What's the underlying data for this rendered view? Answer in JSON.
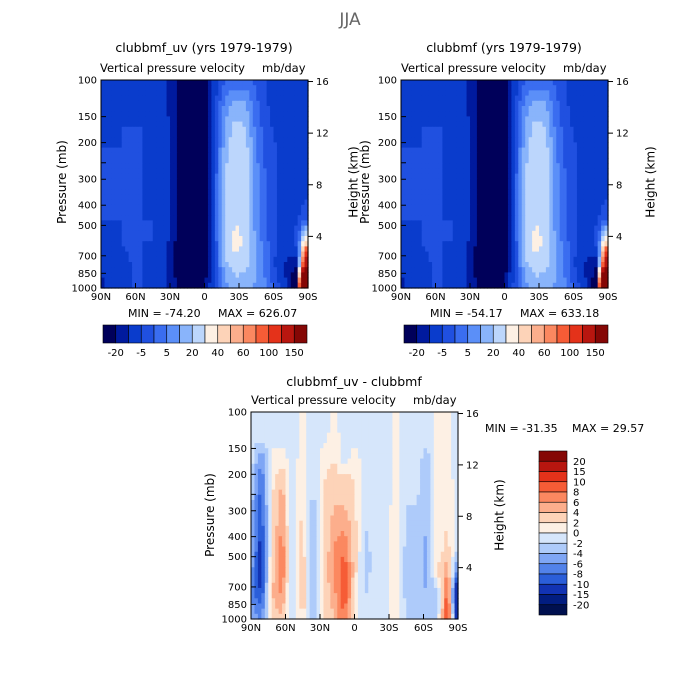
{
  "page": {
    "suptitle": "JJA"
  },
  "chart_data": [
    {
      "type": "heatmap",
      "title": "clubbmf_uv (yrs 1979-1979)",
      "subtitle_left": "Vertical pressure velocity",
      "subtitle_right": "mb/day",
      "xlabel": "",
      "ylabel": "Pressure (mb)",
      "ylabel_right": "Height (km)",
      "x_ticks": [
        "90N",
        "60N",
        "30N",
        "0",
        "30S",
        "60S",
        "90S"
      ],
      "y_ticks": [
        100,
        150,
        200,
        250,
        300,
        400,
        500,
        700,
        850,
        1000
      ],
      "y_tick_labels": [
        "100",
        "150",
        "200",
        "250",
        "300",
        "400",
        "500",
        "700",
        "850",
        "1000"
      ],
      "y_scale": "log",
      "ylim": [
        1000,
        100
      ],
      "height_ticks": [
        "16",
        "12",
        "8",
        "4"
      ],
      "stats": {
        "min_text": "MIN = -74.20",
        "max_text": "MAX = 626.07"
      },
      "colorbar": {
        "orientation": "horizontal",
        "labels": [
          "-20",
          "-5",
          "5",
          "20",
          "40",
          "60",
          "100",
          "150"
        ]
      },
      "field_mb_per_day": [
        [
          -10,
          -12,
          -12,
          -10,
          -12,
          -14,
          -14,
          -18,
          -24,
          -30,
          -22,
          -12,
          -6,
          -4,
          -4,
          -6,
          -10,
          -12,
          -14,
          -14,
          -12
        ],
        [
          -10,
          -12,
          -12,
          -10,
          -12,
          -14,
          -14,
          -18,
          -24,
          -32,
          -24,
          -12,
          2,
          6,
          5,
          -4,
          -10,
          -12,
          -14,
          -14,
          -12
        ],
        [
          -10,
          -12,
          -10,
          -10,
          -10,
          -12,
          -12,
          -16,
          -26,
          -36,
          -26,
          -10,
          6,
          12,
          10,
          -2,
          -8,
          -12,
          -12,
          -12,
          -12
        ],
        [
          -10,
          -10,
          -10,
          -10,
          -10,
          -12,
          -12,
          -16,
          -28,
          -40,
          -28,
          -8,
          8,
          14,
          12,
          0,
          -8,
          -10,
          -12,
          -12,
          -12
        ],
        [
          -10,
          -10,
          -10,
          -10,
          -10,
          -12,
          -12,
          -16,
          -28,
          -42,
          -30,
          -8,
          10,
          16,
          14,
          2,
          -6,
          -10,
          -12,
          -12,
          -10
        ],
        [
          -10,
          -10,
          -10,
          -8,
          -10,
          -12,
          -12,
          -16,
          -30,
          -44,
          -30,
          -8,
          10,
          16,
          14,
          2,
          -6,
          -10,
          -12,
          -12,
          -10
        ],
        [
          -10,
          -10,
          -10,
          -8,
          -10,
          -10,
          -12,
          -16,
          -30,
          -44,
          -30,
          -8,
          10,
          16,
          14,
          2,
          -6,
          -10,
          -12,
          -10,
          -8
        ],
        [
          -12,
          -12,
          -10,
          -8,
          -10,
          -10,
          -12,
          -18,
          -30,
          -42,
          -28,
          -8,
          10,
          30,
          14,
          4,
          -4,
          -10,
          -12,
          -8,
          40
        ],
        [
          -14,
          -14,
          -12,
          -10,
          -10,
          -12,
          -14,
          -20,
          -30,
          -40,
          -26,
          -8,
          8,
          14,
          12,
          6,
          -2,
          -12,
          -16,
          -20,
          150
        ],
        [
          -16,
          -14,
          -12,
          -10,
          -10,
          -12,
          -14,
          -18,
          -24,
          -28,
          -20,
          -8,
          4,
          6,
          6,
          4,
          0,
          -8,
          -16,
          -30,
          600
        ]
      ]
    },
    {
      "type": "heatmap",
      "title": "clubbmf (yrs 1979-1979)",
      "subtitle_left": "Vertical pressure velocity",
      "subtitle_right": "mb/day",
      "xlabel": "",
      "ylabel": "Pressure (mb)",
      "ylabel_right": "Height (km)",
      "x_ticks": [
        "90N",
        "60N",
        "30N",
        "0",
        "30S",
        "60S",
        "90S"
      ],
      "y_ticks": [
        100,
        150,
        200,
        250,
        300,
        400,
        500,
        700,
        850,
        1000
      ],
      "y_tick_labels": [
        "100",
        "150",
        "200",
        "250",
        "300",
        "400",
        "500",
        "700",
        "850",
        "1000"
      ],
      "y_scale": "log",
      "ylim": [
        1000,
        100
      ],
      "height_ticks": [
        "16",
        "12",
        "8",
        "4"
      ],
      "stats": {
        "min_text": "MIN = -54.17",
        "max_text": "MAX = 633.18"
      },
      "colorbar": {
        "orientation": "horizontal",
        "labels": [
          "-20",
          "-5",
          "5",
          "20",
          "40",
          "60",
          "100",
          "150"
        ]
      },
      "field_mb_per_day": [
        [
          -10,
          -12,
          -12,
          -10,
          -12,
          -14,
          -14,
          -18,
          -24,
          -30,
          -22,
          -12,
          -6,
          -4,
          -4,
          -6,
          -10,
          -12,
          -14,
          -14,
          -12
        ],
        [
          -10,
          -12,
          -12,
          -10,
          -12,
          -14,
          -14,
          -18,
          -24,
          -32,
          -24,
          -12,
          2,
          6,
          5,
          -4,
          -10,
          -12,
          -14,
          -14,
          -12
        ],
        [
          -10,
          -12,
          -10,
          -10,
          -10,
          -12,
          -12,
          -16,
          -26,
          -34,
          -26,
          -10,
          6,
          12,
          10,
          -2,
          -8,
          -12,
          -12,
          -12,
          -12
        ],
        [
          -10,
          -10,
          -10,
          -10,
          -10,
          -12,
          -12,
          -16,
          -26,
          -36,
          -26,
          -8,
          8,
          14,
          12,
          0,
          -8,
          -10,
          -12,
          -12,
          -12
        ],
        [
          -10,
          -10,
          -10,
          -10,
          -10,
          -12,
          -12,
          -16,
          -26,
          -38,
          -26,
          -8,
          10,
          16,
          14,
          2,
          -6,
          -10,
          -12,
          -12,
          -10
        ],
        [
          -10,
          -10,
          -10,
          -8,
          -10,
          -12,
          -12,
          -16,
          -28,
          -40,
          -28,
          -8,
          10,
          16,
          14,
          2,
          -6,
          -10,
          -12,
          -12,
          -10
        ],
        [
          -10,
          -10,
          -10,
          -8,
          -10,
          -10,
          -12,
          -16,
          -28,
          -40,
          -28,
          -8,
          10,
          16,
          14,
          2,
          -6,
          -10,
          -12,
          -10,
          -8
        ],
        [
          -12,
          -12,
          -10,
          -8,
          -10,
          -10,
          -12,
          -18,
          -28,
          -38,
          -26,
          -8,
          10,
          30,
          14,
          4,
          -4,
          -10,
          -12,
          -8,
          40
        ],
        [
          -14,
          -14,
          -12,
          -10,
          -10,
          -12,
          -14,
          -20,
          -28,
          -36,
          -24,
          -8,
          8,
          14,
          12,
          6,
          -2,
          -12,
          -16,
          -20,
          150
        ],
        [
          -16,
          -14,
          -12,
          -10,
          -10,
          -12,
          -14,
          -18,
          -22,
          -26,
          -18,
          -8,
          4,
          6,
          6,
          4,
          0,
          -8,
          -16,
          -28,
          600
        ]
      ]
    },
    {
      "type": "heatmap",
      "title": "clubbmf_uv - clubbmf",
      "subtitle_left": "Vertical pressure velocity",
      "subtitle_right": "mb/day",
      "xlabel": "",
      "ylabel": "Pressure (mb)",
      "ylabel_right": "Height (km)",
      "x_ticks": [
        "90N",
        "60N",
        "30N",
        "0",
        "30S",
        "60S",
        "90S"
      ],
      "y_ticks": [
        100,
        150,
        200,
        250,
        300,
        400,
        500,
        700,
        850,
        1000
      ],
      "y_tick_labels": [
        "100",
        "150",
        "200",
        "250",
        "300",
        "400",
        "500",
        "700",
        "850",
        "1000"
      ],
      "y_scale": "log",
      "ylim": [
        1000,
        100
      ],
      "height_ticks": [
        "16",
        "12",
        "8",
        "4"
      ],
      "stats": {
        "min_text": "MIN = -31.35",
        "max_text": "MAX =  29.57"
      },
      "colorbar": {
        "orientation": "vertical",
        "labels": [
          "20",
          "15",
          "10",
          "8",
          "6",
          "4",
          "2",
          "0",
          "-2",
          "-4",
          "-6",
          "-8",
          "-10",
          "-15",
          "-20"
        ]
      },
      "field_mb_per_day": [
        [
          1,
          1,
          1,
          1,
          1,
          -1,
          1,
          1,
          -1,
          1,
          1,
          1,
          1,
          1,
          -1,
          1,
          1,
          1,
          -1,
          -1,
          1
        ],
        [
          1,
          1,
          1,
          1,
          1,
          -1,
          1,
          1,
          -1,
          1,
          1,
          1,
          1,
          1,
          -1,
          1,
          1,
          1,
          -1,
          -1,
          1
        ],
        [
          1,
          6,
          -1,
          -1,
          1,
          -1,
          1,
          -1,
          -2,
          1,
          -1,
          1,
          1,
          1,
          -1,
          1,
          1,
          3,
          -1,
          -1,
          1
        ],
        [
          2,
          8,
          -1,
          -4,
          1,
          -2,
          2,
          -2,
          -3,
          -3,
          -2,
          1,
          1,
          1,
          -1,
          2,
          1,
          4,
          -1,
          -1,
          1
        ],
        [
          3,
          10,
          -2,
          -6,
          2,
          -2,
          3,
          -2,
          -4,
          -4,
          -2,
          2,
          1,
          1,
          -1,
          2,
          2,
          4,
          -1,
          -2,
          1
        ],
        [
          3,
          10,
          -2,
          -6,
          2,
          -3,
          4,
          -2,
          -5,
          -6,
          -3,
          2,
          1,
          1,
          -2,
          2,
          2,
          4,
          -1,
          -2,
          1
        ],
        [
          4,
          12,
          -2,
          -8,
          2,
          -3,
          4,
          -2,
          -6,
          -8,
          -3,
          3,
          1,
          1,
          -2,
          3,
          2,
          5,
          -1,
          -3,
          2
        ],
        [
          5,
          12,
          -3,
          -8,
          3,
          -4,
          5,
          -3,
          -6,
          -10,
          -3,
          3,
          1,
          1,
          -2,
          3,
          2,
          5,
          -2,
          -6,
          8
        ],
        [
          6,
          10,
          -4,
          -6,
          3,
          -4,
          4,
          -2,
          -5,
          -10,
          -2,
          2,
          1,
          1,
          -2,
          3,
          2,
          4,
          4,
          -10,
          20
        ],
        [
          4,
          6,
          -2,
          -4,
          2,
          -2,
          3,
          -2,
          -4,
          -8,
          -2,
          2,
          1,
          1,
          -2,
          2,
          2,
          3,
          2,
          -12,
          14
        ]
      ]
    }
  ],
  "colorbar_colors": {
    "top_panels": [
      "#00005a",
      "#001a9e",
      "#0a3ccc",
      "#2050e0",
      "#3a6df0",
      "#5b8ff8",
      "#89b4fb",
      "#bcd6fc",
      "#fdf0e4",
      "#fdd3b8",
      "#fcae8c",
      "#fb8860",
      "#f65c36",
      "#e4321a",
      "#b8160f",
      "#850705"
    ],
    "diff_panel": [
      "#850705",
      "#b8160f",
      "#e4321a",
      "#f65c36",
      "#fb8860",
      "#fcae8c",
      "#fdd3b8",
      "#fdf0e4",
      "#d6e6fb",
      "#aecbfa",
      "#7fa6f5",
      "#5282ea",
      "#2b5ed9",
      "#1233b3",
      "#021d80",
      "#00104f"
    ]
  },
  "colorbar_bounds": {
    "top_panels": [
      -20,
      -15,
      -10,
      -5,
      0,
      5,
      10,
      20,
      30,
      40,
      50,
      60,
      80,
      100,
      150
    ],
    "diff_panel": [
      -20,
      -15,
      -10,
      -8,
      -6,
      -4,
      -2,
      0,
      2,
      4,
      6,
      8,
      10,
      15,
      20
    ]
  }
}
